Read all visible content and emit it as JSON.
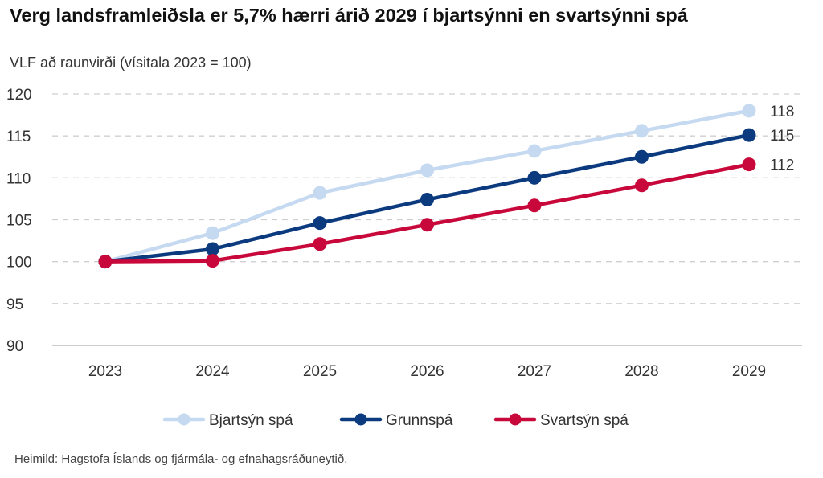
{
  "header": {
    "title": "Verg landsframleiðsla er 5,7% hærri árið 2029 í bjartsýnni en svartsýnni spá",
    "subtitle": "VLF að raunvirði (vísitala 2023 = 100)"
  },
  "footer": {
    "source": "Heimild: Hagstofa Íslands og fjármála- og efnahagsráðuneytið."
  },
  "chart_data": {
    "type": "line",
    "title": "Verg landsframleiðsla er 5,7% hærri árið 2029 í bjartsýnni en svartsýnni spá",
    "subtitle": "VLF að raunvirði (vísitala 2023 = 100)",
    "x": [
      "2023",
      "2024",
      "2025",
      "2026",
      "2027",
      "2028",
      "2029"
    ],
    "ylim": [
      90,
      120
    ],
    "yticks": [
      90,
      95,
      100,
      105,
      110,
      115,
      120
    ],
    "grid": true,
    "legend": "bottom",
    "series": [
      {
        "name": "Bjartsýn spá",
        "color": "#c5d9f1",
        "values": [
          100,
          103.4,
          108.2,
          110.9,
          113.2,
          115.6,
          118.0
        ],
        "end_label": "118"
      },
      {
        "name": "Grunnspá",
        "color": "#0b3a7e",
        "values": [
          100,
          101.5,
          104.6,
          107.4,
          110.0,
          112.5,
          115.1
        ],
        "end_label": "115"
      },
      {
        "name": "Svartsýn spá",
        "color": "#c8083a",
        "values": [
          100,
          100.1,
          102.1,
          104.4,
          106.7,
          109.1,
          111.6
        ],
        "end_label": "112"
      }
    ]
  }
}
